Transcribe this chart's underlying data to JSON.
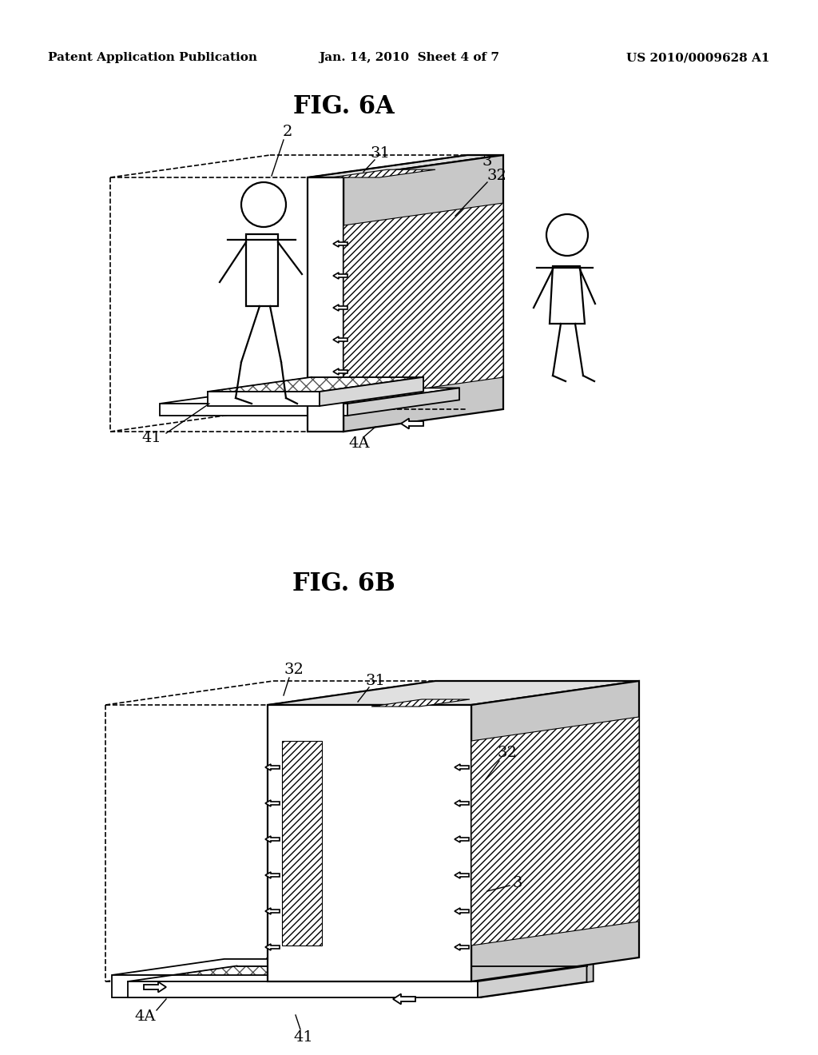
{
  "bg_color": "#ffffff",
  "line_color": "#000000",
  "header": {
    "left": "Patent Application Publication",
    "center": "Jan. 14, 2010  Sheet 4 of 7",
    "right": "US 2010/0009628 A1",
    "fontsize": 11
  },
  "fig6a_title": "FIG. 6A",
  "fig6b_title": "FIG. 6B",
  "title_fontsize": 22,
  "label_fontsize": 14
}
